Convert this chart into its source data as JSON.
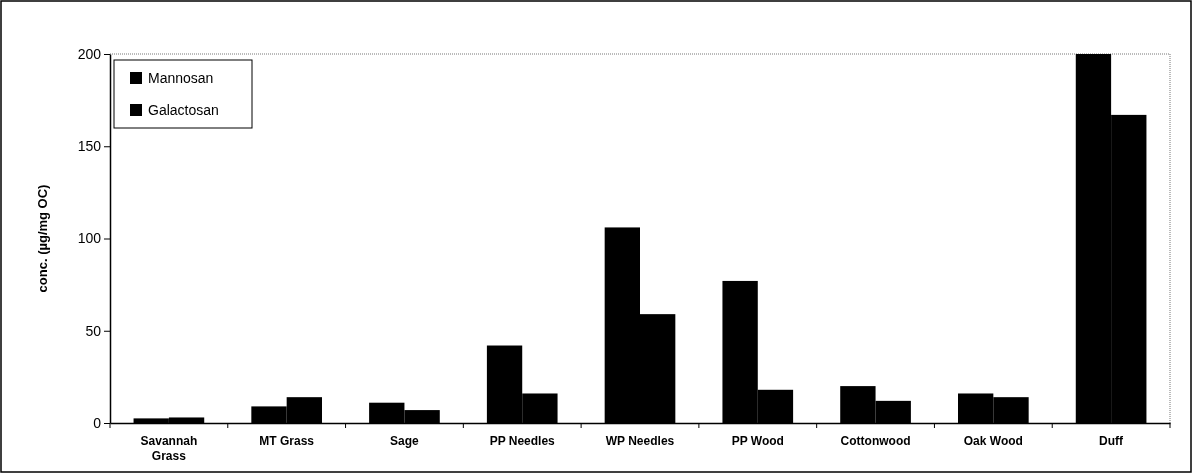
{
  "chart_data": {
    "type": "bar",
    "ylabel": "conc. (µg/mg OC)",
    "categories": [
      "Savannah Grass",
      "MT Grass",
      "Sage",
      "PP Needles",
      "WP Needles",
      "PP Wood",
      "Cottonwood",
      "Oak Wood",
      "Duff"
    ],
    "series": [
      {
        "name": "Mannosan",
        "color": "#000000",
        "values": [
          2.5,
          9,
          11,
          42,
          106,
          77,
          20,
          16,
          200
        ]
      },
      {
        "name": "Galactosan",
        "color": "#000000",
        "values": [
          3,
          14,
          7,
          16,
          59,
          18,
          12,
          14,
          167
        ]
      }
    ],
    "ylim": [
      0,
      200
    ],
    "yticks": [
      0,
      50,
      100,
      150,
      200
    ],
    "legend": "top left"
  }
}
